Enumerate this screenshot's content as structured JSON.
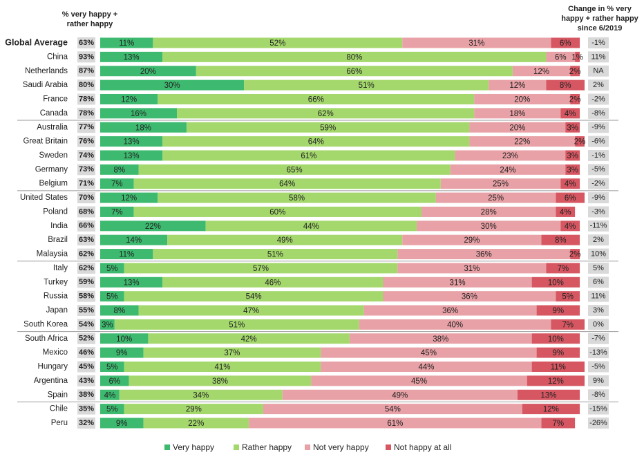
{
  "chart_data": {
    "type": "bar",
    "orientation": "horizontal",
    "stacked": true,
    "categories": [
      "Global Average",
      "China",
      "Netherlands",
      "Saudi Arabia",
      "France",
      "Canada",
      "Australia",
      "Great Britain",
      "Sweden",
      "Germany",
      "Belgium",
      "United States",
      "Poland",
      "India",
      "Brazil",
      "Malaysia",
      "Italy",
      "Turkey",
      "Russia",
      "Japan",
      "South Korea",
      "South Africa",
      "Mexico",
      "Hungary",
      "Argentina",
      "Spain",
      "Chile",
      "Peru"
    ],
    "series": [
      {
        "name": "Very happy",
        "color": "#3dba6f",
        "values": [
          11,
          13,
          20,
          30,
          12,
          16,
          18,
          13,
          13,
          8,
          7,
          12,
          7,
          22,
          14,
          11,
          5,
          13,
          5,
          8,
          3,
          10,
          9,
          5,
          6,
          4,
          5,
          9
        ],
        "value_labels": [
          "11%",
          "13%",
          "20%",
          "30%",
          "12%",
          "16%",
          "18%",
          "13%",
          "13%",
          "8%",
          "7%",
          "12%",
          "7%",
          "22%",
          "14%",
          "11%",
          "5%",
          "13%",
          "5%",
          "8%",
          "3%",
          "10%",
          "9%",
          "5%",
          "6%",
          "4%",
          "5%",
          "9%"
        ]
      },
      {
        "name": "Rather happy",
        "color": "#a4d86c",
        "values": [
          52,
          80,
          66,
          51,
          66,
          62,
          59,
          64,
          61,
          65,
          64,
          58,
          60,
          44,
          49,
          51,
          57,
          46,
          54,
          47,
          51,
          42,
          37,
          41,
          38,
          34,
          29,
          22
        ],
        "value_labels": [
          "52%",
          "80%",
          "66%",
          "51%",
          "66%",
          "62%",
          "59%",
          "64%",
          "61%",
          "65%",
          "64%",
          "58%",
          "60%",
          "44%",
          "49%",
          "51%",
          "57%",
          "46%",
          "54%",
          "47%",
          "51%",
          "42%",
          "37%",
          "41%",
          "38%",
          "34%",
          "29%",
          "22%"
        ]
      },
      {
        "name": "Not very happy",
        "color": "#e8a1a6",
        "values": [
          31,
          6,
          12,
          12,
          20,
          18,
          20,
          22,
          23,
          24,
          25,
          25,
          28,
          30,
          29,
          36,
          31,
          31,
          36,
          36,
          40,
          38,
          45,
          44,
          45,
          49,
          54,
          61
        ],
        "value_labels": [
          "31%",
          "6%",
          "12%",
          "12%",
          "20%",
          "18%",
          "20%",
          "22%",
          "23%",
          "24%",
          "25%",
          "25%",
          "28%",
          "30%",
          "29%",
          "36%",
          "31%",
          "31%",
          "36%",
          "36%",
          "40%",
          "38%",
          "45%",
          "44%",
          "45%",
          "49%",
          "54%",
          "61%"
        ]
      },
      {
        "name": "Not happy at all",
        "color": "#d65762",
        "values": [
          6,
          1,
          2,
          8,
          2,
          4,
          3,
          2,
          3,
          3,
          4,
          6,
          4,
          4,
          8,
          2,
          7,
          10,
          5,
          9,
          7,
          10,
          9,
          11,
          12,
          13,
          12,
          7
        ],
        "value_labels": [
          "6%",
          "1%",
          "2%",
          "8%",
          "2%",
          "4%",
          "3%",
          "2%",
          "3%",
          "3%",
          "4%",
          "6%",
          "4%",
          "4%",
          "8%",
          "2%",
          "7%",
          "10%",
          "5%",
          "9%",
          "7%",
          "10%",
          "9%",
          "11%",
          "12%",
          "13%",
          "12%",
          "7%"
        ]
      }
    ],
    "totals": {
      "header": "% very happy + rather happy",
      "values": [
        63,
        93,
        87,
        80,
        78,
        78,
        77,
        76,
        74,
        73,
        71,
        70,
        68,
        66,
        63,
        62,
        62,
        59,
        58,
        55,
        54,
        52,
        46,
        45,
        43,
        38,
        35,
        32
      ],
      "value_labels": [
        "63%",
        "93%",
        "87%",
        "80%",
        "78%",
        "78%",
        "77%",
        "76%",
        "74%",
        "73%",
        "71%",
        "70%",
        "68%",
        "66%",
        "63%",
        "62%",
        "62%",
        "59%",
        "58%",
        "55%",
        "54%",
        "52%",
        "46%",
        "45%",
        "43%",
        "38%",
        "35%",
        "32%"
      ]
    },
    "change": {
      "header": "Change in % very happy + rather happy since 6/2019",
      "values": [
        -1,
        11,
        null,
        2,
        -2,
        -8,
        -9,
        -6,
        -1,
        -5,
        -2,
        -9,
        -3,
        -11,
        2,
        10,
        5,
        6,
        11,
        3,
        0,
        -7,
        -13,
        -5,
        9,
        -8,
        -15,
        -26
      ],
      "value_labels": [
        "-1%",
        "11%",
        "NA",
        "2%",
        "-2%",
        "-8%",
        "-9%",
        "-6%",
        "-1%",
        "-5%",
        "-2%",
        "-9%",
        "-3%",
        "-11%",
        "2%",
        "10%",
        "5%",
        "6%",
        "11%",
        "3%",
        "0%",
        "-7%",
        "-13%",
        "-5%",
        "9%",
        "-8%",
        "-15%",
        "-26%"
      ]
    },
    "legend": "bottom"
  }
}
